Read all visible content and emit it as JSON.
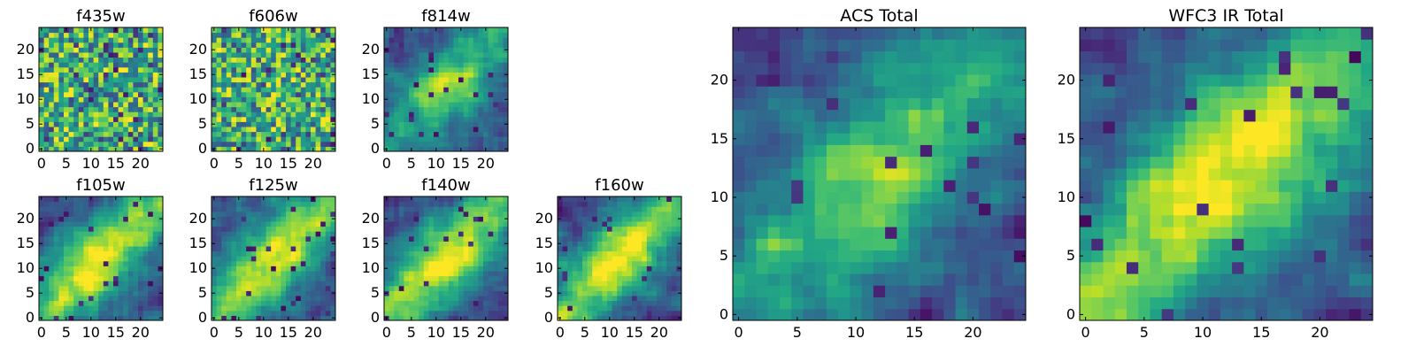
{
  "chart_data": [
    {
      "type": "heatmap",
      "title": "f435w",
      "x_ticks": [
        0,
        5,
        10,
        15,
        20
      ],
      "y_ticks": [
        0,
        5,
        10,
        15,
        20
      ],
      "xlim": [
        -0.5,
        24.5
      ],
      "ylim": [
        -0.5,
        24.5
      ],
      "grid_size": [
        25,
        25
      ],
      "colormap": "viridis",
      "pattern": "noise"
    },
    {
      "type": "heatmap",
      "title": "f606w",
      "x_ticks": [
        0,
        5,
        10,
        15,
        20
      ],
      "y_ticks": [
        0,
        5,
        10,
        15,
        20
      ],
      "xlim": [
        -0.5,
        24.5
      ],
      "ylim": [
        -0.5,
        24.5
      ],
      "grid_size": [
        25,
        25
      ],
      "colormap": "viridis",
      "pattern": "noise"
    },
    {
      "type": "heatmap",
      "title": "f814w",
      "x_ticks": [
        0,
        5,
        10,
        15,
        20
      ],
      "y_ticks": [
        0,
        5,
        10,
        15,
        20
      ],
      "xlim": [
        -0.5,
        24.5
      ],
      "ylim": [
        -0.5,
        24.5
      ],
      "grid_size": [
        25,
        25
      ],
      "colormap": "viridis",
      "pattern": "diagonal-band-lower-left-to-upper-right"
    },
    {
      "type": "heatmap",
      "title": "f105w",
      "x_ticks": [
        0,
        5,
        10,
        15,
        20
      ],
      "y_ticks": [
        0,
        5,
        10,
        15,
        20
      ],
      "xlim": [
        -0.5,
        24.5
      ],
      "ylim": [
        -0.5,
        24.5
      ],
      "grid_size": [
        25,
        25
      ],
      "colormap": "viridis",
      "pattern": "diagonal-band-bright-center"
    },
    {
      "type": "heatmap",
      "title": "f125w",
      "x_ticks": [
        0,
        5,
        10,
        15,
        20
      ],
      "y_ticks": [
        0,
        5,
        10,
        15,
        20
      ],
      "xlim": [
        -0.5,
        24.5
      ],
      "ylim": [
        -0.5,
        24.5
      ],
      "grid_size": [
        25,
        25
      ],
      "colormap": "viridis",
      "pattern": "diagonal-band-bright-center"
    },
    {
      "type": "heatmap",
      "title": "f140w",
      "x_ticks": [
        0,
        5,
        10,
        15,
        20
      ],
      "y_ticks": [
        0,
        5,
        10,
        15,
        20
      ],
      "xlim": [
        -0.5,
        24.5
      ],
      "ylim": [
        -0.5,
        24.5
      ],
      "grid_size": [
        25,
        25
      ],
      "colormap": "viridis",
      "pattern": "diagonal-band-bright-center"
    },
    {
      "type": "heatmap",
      "title": "f160w",
      "x_ticks": [
        0,
        5,
        10,
        15,
        20
      ],
      "y_ticks": [
        0,
        5,
        10,
        15,
        20
      ],
      "xlim": [
        -0.5,
        24.5
      ],
      "ylim": [
        -0.5,
        24.5
      ],
      "grid_size": [
        25,
        25
      ],
      "colormap": "viridis",
      "pattern": "diagonal-band-bright-center"
    },
    {
      "type": "heatmap",
      "title": "ACS Total",
      "x_ticks": [
        0,
        5,
        10,
        15,
        20
      ],
      "y_ticks": [
        0,
        5,
        10,
        15,
        20
      ],
      "xlim": [
        -0.5,
        24.5
      ],
      "ylim": [
        -0.5,
        24.5
      ],
      "grid_size": [
        25,
        25
      ],
      "colormap": "viridis",
      "pattern": "diagonal-band-lower-left-to-upper-right"
    },
    {
      "type": "heatmap",
      "title": "WFC3 IR Total",
      "x_ticks": [
        0,
        5,
        10,
        15,
        20
      ],
      "y_ticks": [
        0,
        5,
        10,
        15,
        20
      ],
      "xlim": [
        -0.5,
        24.5
      ],
      "ylim": [
        -0.5,
        24.5
      ],
      "grid_size": [
        25,
        25
      ],
      "colormap": "viridis",
      "pattern": "diagonal-band-bright-center"
    }
  ]
}
